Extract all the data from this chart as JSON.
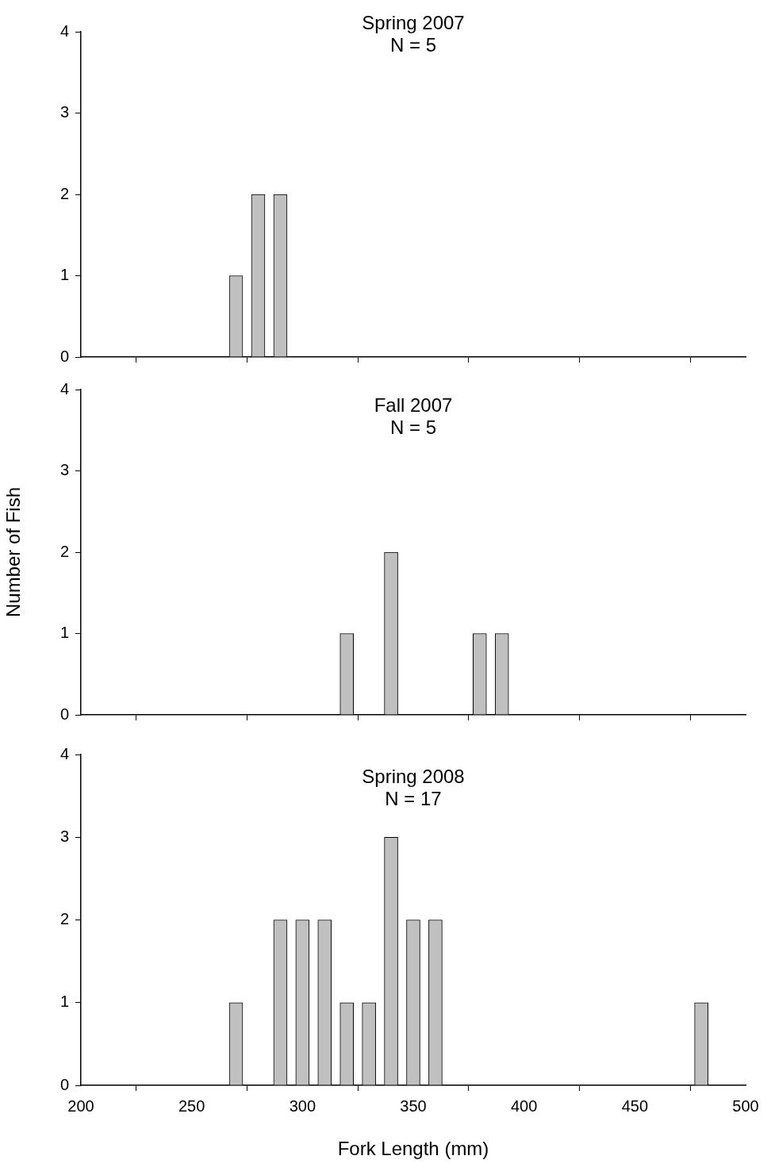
{
  "chart_data": [
    {
      "type": "bar",
      "title": "Spring 2007",
      "subtitle": "N = 5",
      "x": [
        270,
        280,
        290
      ],
      "values": [
        1,
        2,
        2
      ],
      "color": "#c0c0c0",
      "xlim": [
        200,
        500
      ],
      "xticks": [
        {
          "value": 200,
          "label": null
        },
        {
          "value": 250,
          "label": null
        },
        {
          "value": 300,
          "label": null
        },
        {
          "value": 350,
          "label": null
        },
        {
          "value": 400,
          "label": null
        },
        {
          "value": 450,
          "label": null
        },
        {
          "value": 500,
          "label": null
        }
      ],
      "ylim": [
        0,
        4
      ],
      "yticks": [
        0,
        1,
        2,
        3,
        4
      ],
      "tick_labels": "y"
    },
    {
      "type": "bar",
      "title": "Fall 2007",
      "subtitle": "N = 5",
      "ylabel": "Number of Fish",
      "x": [
        320,
        340,
        380,
        390
      ],
      "values": [
        1,
        2,
        1,
        1
      ],
      "color": "#c0c0c0",
      "xlim": [
        200,
        500
      ],
      "xticks": [
        {
          "value": 200,
          "label": null
        },
        {
          "value": 250,
          "label": null
        },
        {
          "value": 300,
          "label": null
        },
        {
          "value": 350,
          "label": null
        },
        {
          "value": 400,
          "label": null
        },
        {
          "value": 450,
          "label": null
        },
        {
          "value": 500,
          "label": null
        }
      ],
      "ylim": [
        0,
        4
      ],
      "yticks": [
        0,
        1,
        2,
        3,
        4
      ],
      "tick_labels": "y"
    },
    {
      "type": "bar",
      "title": "Spring 2008",
      "subtitle": "N = 17",
      "xlabel": "Fork Length (mm)",
      "x": [
        270,
        290,
        300,
        310,
        320,
        330,
        340,
        350,
        360,
        480
      ],
      "values": [
        1,
        2,
        2,
        2,
        1,
        1,
        3,
        2,
        2,
        1
      ],
      "color": "#c0c0c0",
      "xlim": [
        200,
        500
      ],
      "xticks": [
        200,
        250,
        300,
        350,
        400,
        450,
        500
      ],
      "ylim": [
        0,
        4
      ],
      "yticks": [
        0,
        1,
        2,
        3,
        4
      ]
    }
  ]
}
